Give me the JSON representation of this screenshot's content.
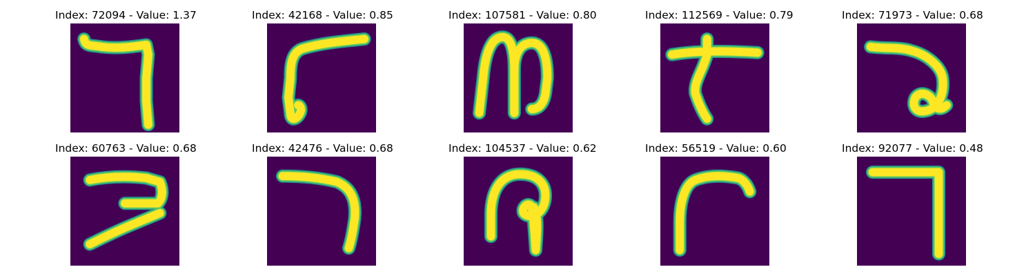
{
  "colors": {
    "background": "#440154",
    "stroke_edge": "#21918c",
    "stroke_mid": "#5ec962",
    "stroke_core": "#fde725"
  },
  "panels": [
    {
      "title": "Index: 72094 - Value: 1.37",
      "glyph": "hooked-seven-character"
    },
    {
      "title": "Index: 42168 - Value: 0.85",
      "glyph": "r-shaped-character"
    },
    {
      "title": "Index: 107581 - Value: 0.80",
      "glyph": "m-shaped-character"
    },
    {
      "title": "Index: 112569 - Value: 0.79",
      "glyph": "cross-stroke-character"
    },
    {
      "title": "Index: 71973 - Value: 0.68",
      "glyph": "a-loop-character"
    },
    {
      "title": "Index: 60763 - Value: 0.68",
      "glyph": "z-shaped-character"
    },
    {
      "title": "Index: 42476 - Value: 0.68",
      "glyph": "seven-curve-character"
    },
    {
      "title": "Index: 104537 - Value: 0.62",
      "glyph": "p-loop-character"
    },
    {
      "title": "Index: 56519 - Value: 0.60",
      "glyph": "arc-r-character"
    },
    {
      "title": "Index: 92077 - Value: 0.48",
      "glyph": "seven-straight-character"
    }
  ]
}
